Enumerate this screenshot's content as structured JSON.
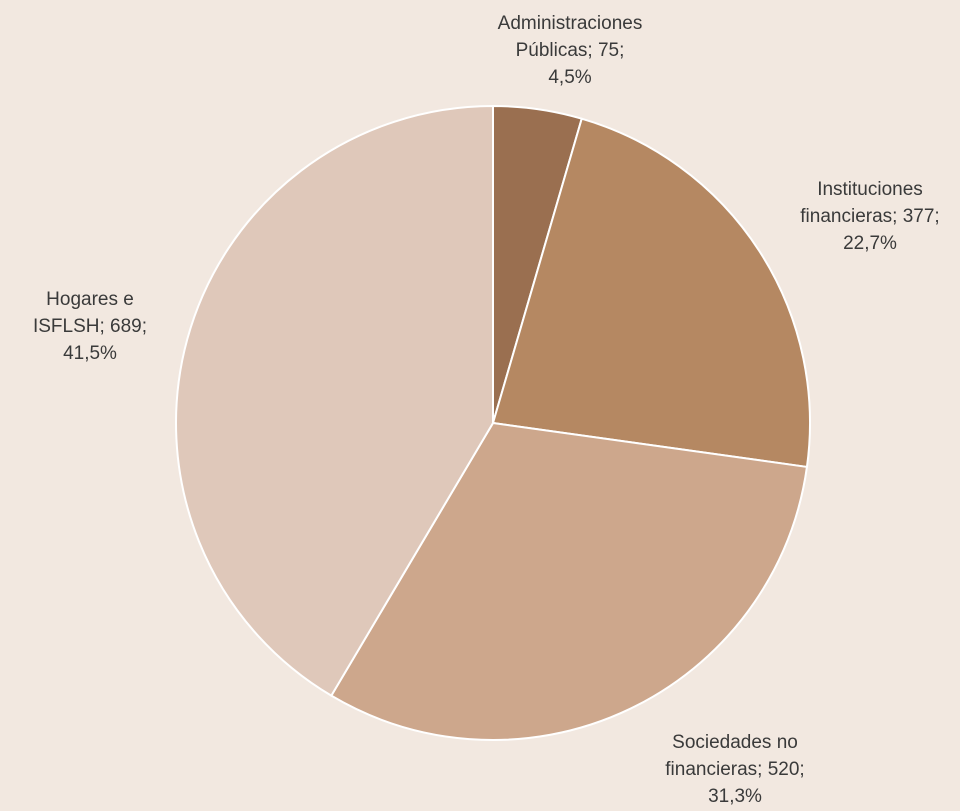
{
  "chart_data": {
    "type": "pie",
    "title": "",
    "start_angle_deg": 0,
    "direction": "clockwise",
    "slices": [
      {
        "label": "Administraciones Públicas",
        "value": 75,
        "percent": "4,5%",
        "color": "#9a6f50",
        "label_lines": [
          "Administraciones",
          "Públicas; 75;",
          "4,5%"
        ]
      },
      {
        "label": "Instituciones financieras",
        "value": 377,
        "percent": "22,7%",
        "color": "#b58862",
        "label_lines": [
          "Instituciones",
          "financieras; 377;",
          "22,7%"
        ]
      },
      {
        "label": "Sociedades no financieras",
        "value": 520,
        "percent": "31,3%",
        "color": "#cda78c",
        "label_lines": [
          "Sociedades no",
          "financieras; 520;",
          "31,3%"
        ]
      },
      {
        "label": "Hogares e ISFLSH",
        "value": 689,
        "percent": "41,5%",
        "color": "#dfc8ba",
        "label_lines": [
          "Hogares e",
          "ISFLSH; 689;",
          "41,5%"
        ]
      }
    ],
    "border_color": "#ffffff",
    "text_color": "#3a3a3a",
    "background_color": "#f2e8e0"
  }
}
